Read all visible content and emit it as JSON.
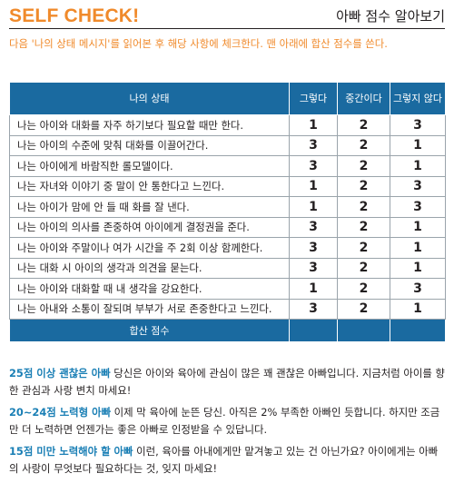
{
  "header": {
    "title": "SELF CHECK!",
    "subtitle": "아빠 점수 알아보기"
  },
  "instruction": "다음 '나의 상태 메시지'를 읽어본 후 해당 사항에 체크한다. 맨 아래에 합산 점수를 쓴다.",
  "table": {
    "columns": [
      "나의 상태",
      "그렇다",
      "중간이다",
      "그렇지 않다"
    ],
    "rows": [
      {
        "statement": "나는 아이와 대화를 자주 하기보다 필요할 때만 한다.",
        "scores": [
          "1",
          "2",
          "3"
        ]
      },
      {
        "statement": "나는 아이의 수준에 맞춰 대화를 이끌어간다.",
        "scores": [
          "3",
          "2",
          "1"
        ]
      },
      {
        "statement": "나는 아이에게 바람직한 롤모델이다.",
        "scores": [
          "3",
          "2",
          "1"
        ]
      },
      {
        "statement": "나는 자녀와 이야기 중 말이 안 통한다고 느낀다.",
        "scores": [
          "1",
          "2",
          "3"
        ]
      },
      {
        "statement": "나는 아이가 맘에 안 들 때 화를 잘 낸다.",
        "scores": [
          "1",
          "2",
          "3"
        ]
      },
      {
        "statement": "나는 아이의 의사를 존중하여 아이에게 결정권을 준다.",
        "scores": [
          "3",
          "2",
          "1"
        ]
      },
      {
        "statement": "나는 아이와 주말이나 여가 시간을 주 2회 이상 함께한다.",
        "scores": [
          "3",
          "2",
          "1"
        ]
      },
      {
        "statement": "나는 대화 시 아이의 생각과 의견을 묻는다.",
        "scores": [
          "3",
          "2",
          "1"
        ]
      },
      {
        "statement": "나는 아이와 대화할 때 내 생각을 강요한다.",
        "scores": [
          "1",
          "2",
          "3"
        ]
      },
      {
        "statement": "나는 아내와 소통이 잘되며 부부가 서로 존중한다고 느낀다.",
        "scores": [
          "3",
          "2",
          "1"
        ]
      }
    ],
    "total_label": "합산 점수"
  },
  "results": [
    {
      "level": "25점 이상 괜찮은 아빠",
      "text": " 당신은 아이와 육아에 관심이 많은 꽤 괜찮은 아빠입니다. 지금처럼 아이를 향한 관심과 사랑 변치 마세요!"
    },
    {
      "level": "20~24점 노력형 아빠",
      "text": " 이제 막 육아에 눈뜬 당신. 아직은 2% 부족한 아빠인 듯합니다. 하지만 조금만 더 노력하면 언젠가는 좋은 아빠로 인정받을 수 있답니다."
    },
    {
      "level": "15점 미만 노력해야 할 아빠",
      "text": " 이런, 육아를 아내에게만 맡겨놓고 있는 건 아닌가요? 아이에게는 아빠의 사랑이 무엇보다 필요하다는 것, 잊지 마세요!"
    }
  ],
  "colors": {
    "accent": "#f08a2b",
    "table_header": "#1a6aa0",
    "level_text": "#1a7fb5"
  }
}
